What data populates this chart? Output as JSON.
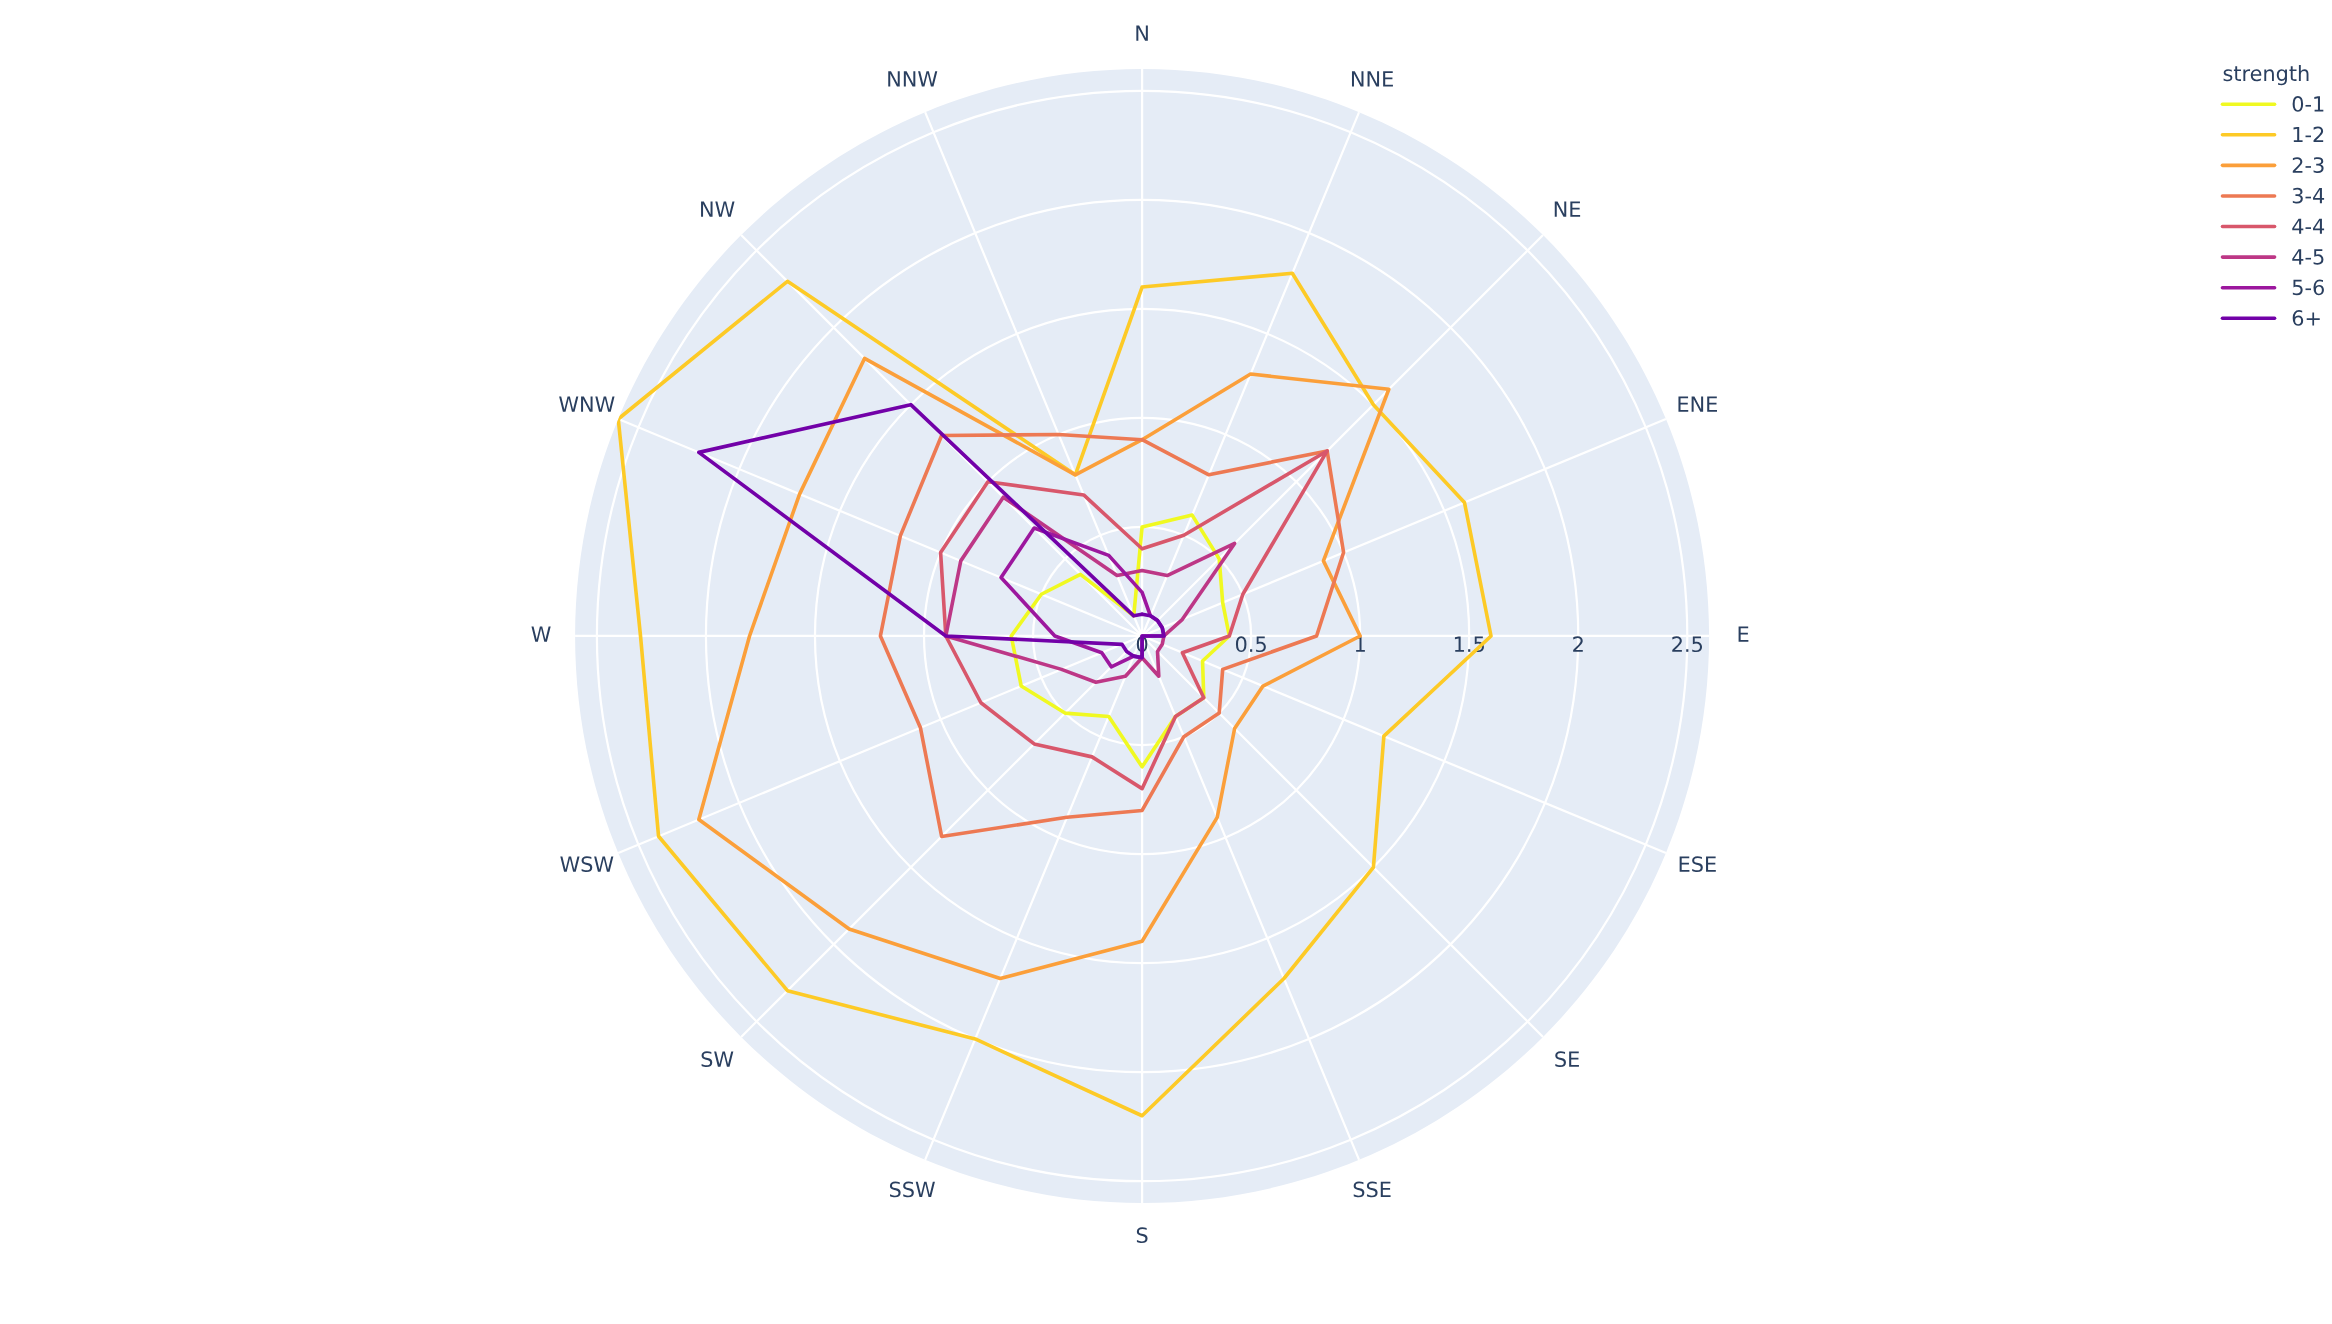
{
  "chart_data": {
    "type": "radar",
    "categories": [
      "N",
      "NNE",
      "NE",
      "ENE",
      "E",
      "ESE",
      "SE",
      "SSE",
      "S",
      "SSW",
      "SW",
      "WSW",
      "W",
      "WNW",
      "NW",
      "NNW"
    ],
    "series": [
      {
        "name": "0-1",
        "color": "#f0f921",
        "values": [
          0.5,
          0.6,
          0.5,
          0.4,
          0.4,
          0.3,
          0.4,
          0.4,
          0.6,
          0.4,
          0.5,
          0.6,
          0.6,
          0.5,
          0.4,
          0.1
        ]
      },
      {
        "name": "1-2",
        "color": "#fdca26",
        "values": [
          1.6,
          1.8,
          1.5,
          1.6,
          1.6,
          1.2,
          1.5,
          1.7,
          2.2,
          2.0,
          2.3,
          2.4,
          2.3,
          2.6,
          2.3,
          0.8
        ]
      },
      {
        "name": "2-3",
        "color": "#fb9f3a",
        "values": [
          0.9,
          1.3,
          1.6,
          0.9,
          1.0,
          0.6,
          0.6,
          0.9,
          1.4,
          1.7,
          1.9,
          2.2,
          1.8,
          1.7,
          1.8,
          0.8
        ]
      },
      {
        "name": "3-4",
        "color": "#ed7953",
        "values": [
          0.9,
          0.8,
          1.2,
          1.0,
          0.8,
          0.4,
          0.5,
          0.5,
          0.8,
          0.9,
          1.3,
          1.1,
          1.2,
          1.2,
          1.3,
          1.0
        ]
      },
      {
        "name": "4-4",
        "color": "#d8576b",
        "values": [
          0.4,
          0.5,
          1.2,
          0.5,
          0.4,
          0.2,
          0.4,
          0.4,
          0.7,
          0.6,
          0.7,
          0.8,
          0.9,
          1.0,
          1.0,
          0.7
        ]
      },
      {
        "name": "4-5",
        "color": "#bd3786",
        "values": [
          0.3,
          0.3,
          0.6,
          0.2,
          0.1,
          0.1,
          0.1,
          0.2,
          0.1,
          0.2,
          0.3,
          0.4,
          0.9,
          0.9,
          0.9,
          0.3
        ]
      },
      {
        "name": "5-6",
        "color": "#9c179e",
        "values": [
          0.2,
          0.1,
          0.1,
          0.1,
          0.1,
          0.0,
          0.0,
          0.0,
          0.1,
          0.1,
          0.2,
          0.2,
          0.4,
          0.7,
          0.7,
          0.4
        ]
      },
      {
        "name": "6+",
        "color": "#7201a8",
        "values": [
          0.1,
          0.1,
          0.1,
          0.1,
          0.1,
          0.0,
          0.0,
          0.0,
          0.1,
          0.1,
          0.1,
          0.1,
          0.9,
          2.2,
          1.5,
          0.1
        ]
      }
    ],
    "ylim": [
      0,
      2.6
    ],
    "yticks": [
      0,
      0.5,
      1,
      1.5,
      2,
      2.5
    ],
    "legend_title": "strength",
    "legend": "top right",
    "grid": true
  }
}
